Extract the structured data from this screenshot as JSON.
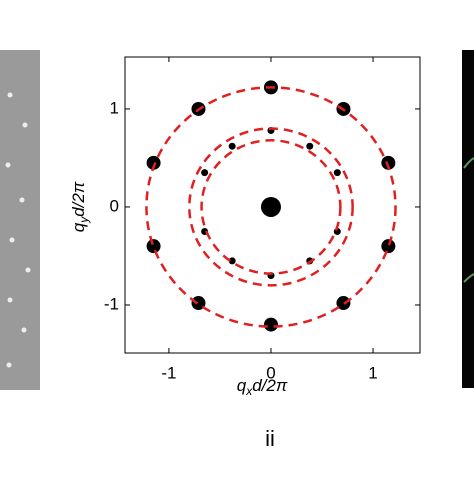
{
  "chart_data": {
    "type": "scatter",
    "xlabel": "q",
    "xlabel_sub": "x",
    "xlabel_rest": "d/2π",
    "ylabel": "q",
    "ylabel_sub": "y",
    "ylabel_rest": "d/2π",
    "panel_label": "ii",
    "xlim": [
      -1.43,
      1.46
    ],
    "ylim": [
      -1.49,
      1.53
    ],
    "xticks": [
      -1,
      0,
      1
    ],
    "yticks": [
      -1,
      0,
      1
    ],
    "x": [
      0,
      0.71,
      1.15,
      1.15,
      0.71,
      0,
      -0.71,
      -1.15,
      -1.15,
      -0.71,
      0,
      0,
      0.38,
      -0.38,
      0.65,
      -0.65,
      0.65,
      -0.65,
      0.38,
      -0.38,
      0
    ],
    "y": [
      1.22,
      1.0,
      0.45,
      -0.4,
      -0.98,
      -1.2,
      -0.98,
      -0.4,
      0.45,
      1.0,
      0.78,
      -0.7,
      0.62,
      0.62,
      0.35,
      0.35,
      -0.25,
      -0.25,
      -0.55,
      -0.55,
      0
    ],
    "sizes": [
      7,
      7,
      7,
      7,
      7,
      7,
      7,
      7,
      7,
      7,
      3.5,
      3.5,
      3.5,
      3.5,
      3.5,
      3.5,
      3.5,
      3.5,
      3.5,
      3.5,
      10
    ],
    "color": "#000000",
    "circles": [
      0.68,
      0.8,
      1.22
    ],
    "circle_color": "#e02020"
  }
}
